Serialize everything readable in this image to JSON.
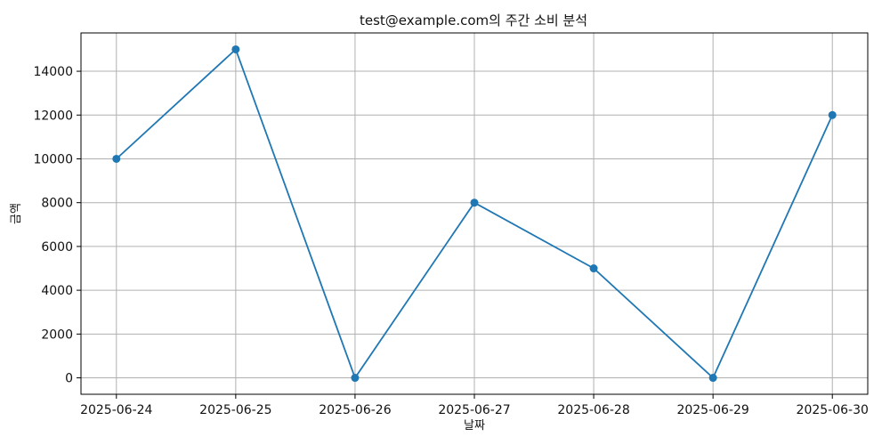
{
  "chart_data": {
    "type": "line",
    "title": "test@example.com의 주간 소비 분석",
    "xlabel": "날짜",
    "ylabel": "금액",
    "categories": [
      "2025-06-24",
      "2025-06-25",
      "2025-06-26",
      "2025-06-27",
      "2025-06-28",
      "2025-06-29",
      "2025-06-30"
    ],
    "series": [
      {
        "values": [
          10000,
          15000,
          0,
          8000,
          5000,
          0,
          12000
        ]
      }
    ],
    "ylim": [
      -750,
      15750
    ],
    "yticks": [
      0,
      2000,
      4000,
      6000,
      8000,
      10000,
      12000,
      14000
    ],
    "grid": true,
    "legend": "none",
    "markers": true,
    "colors": {
      "line": "#1f77b4",
      "grid": "#b0b0b0",
      "axis": "#000000"
    }
  }
}
